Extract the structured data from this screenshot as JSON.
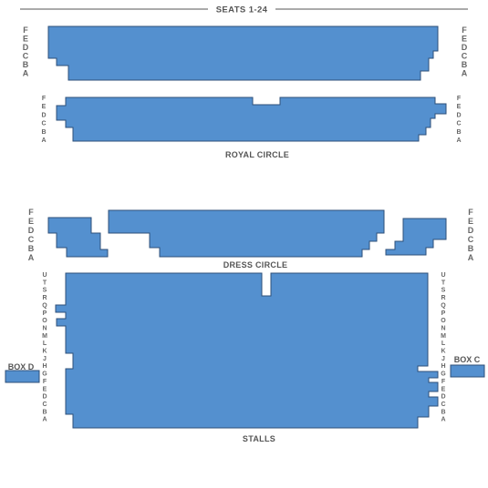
{
  "header": {
    "label": "SEATS 1-24"
  },
  "areas": {
    "royal_circle": "ROYAL CIRCLE",
    "dress_circle": "DRESS CIRCLE",
    "stalls": "STALLS"
  },
  "boxes": {
    "box_d": "BOX D",
    "box_c": "BOX C"
  },
  "row_letters": {
    "royal_circle_upper": [
      "F",
      "E",
      "D",
      "C",
      "B",
      "A"
    ],
    "royal_circle_lower": [
      "F",
      "E",
      "D",
      "C",
      "B",
      "A"
    ],
    "dress_circle": [
      "F",
      "E",
      "D",
      "C",
      "B",
      "A"
    ],
    "stalls": [
      "U",
      "T",
      "S",
      "R",
      "Q",
      "P",
      "O",
      "N",
      "M",
      "L",
      "K",
      "J",
      "H",
      "G",
      "F",
      "E",
      "D",
      "C",
      "B",
      "A"
    ]
  },
  "colors": {
    "seat_fill": "#5490cf",
    "seat_stroke": "#2e4f78",
    "label_text": "#555555"
  }
}
